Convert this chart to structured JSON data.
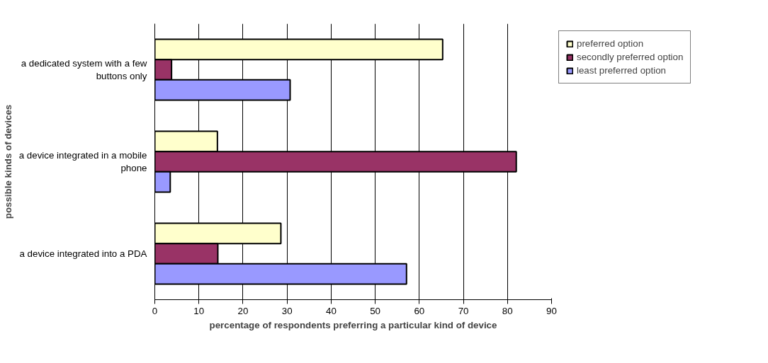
{
  "chart_data": {
    "type": "bar",
    "orientation": "horizontal",
    "xlabel": "percentage of respondents preferring a particular kind of device",
    "ylabel": "possible kinds of devices",
    "categories": [
      "a dedicated system with a few buttons only",
      "a device integrated in a mobile phone",
      "a device integrated into a PDA"
    ],
    "series": [
      {
        "name": "preferred option",
        "color": "#ffffcc",
        "values": [
          65.3,
          14.2,
          28.6
        ]
      },
      {
        "name": "secondly preferred option",
        "color": "#993366",
        "values": [
          3.8,
          82.0,
          14.3
        ]
      },
      {
        "name": "least preferred option",
        "color": "#9999ff",
        "values": [
          30.7,
          3.5,
          57.1
        ]
      }
    ],
    "xlim": [
      0,
      90
    ],
    "xticks": [
      0,
      10,
      20,
      30,
      40,
      50,
      60,
      70,
      80,
      90
    ],
    "grid": "x",
    "legend": "top right"
  }
}
